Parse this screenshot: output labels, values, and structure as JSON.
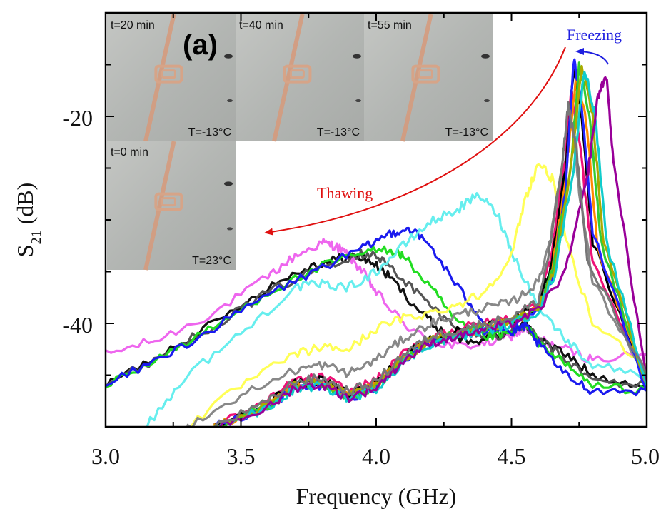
{
  "chart_data": {
    "type": "line",
    "panel_label": "(a)",
    "xlabel": "Frequency (GHz)",
    "ylabel_main": "S",
    "ylabel_sub": "21",
    "ylabel_unit": " (dB)",
    "xlim": [
      3.0,
      5.0
    ],
    "ylim": [
      -50,
      -10
    ],
    "x_ticks": [
      "3.0",
      "3.5",
      "4.0",
      "4.5",
      "5.0"
    ],
    "y_ticks": [
      "-20",
      "-40"
    ],
    "grid": false,
    "annotations": {
      "freezing": "Freezing",
      "thawing": "Thawing",
      "freezing_color": "#1f1fe0",
      "thawing_color": "#e01010"
    },
    "inset_photos": [
      {
        "time": "t=20 min",
        "temp": "T=-13°C"
      },
      {
        "time": "t=40 min",
        "temp": "T=-13°C"
      },
      {
        "time": "t=55 min",
        "temp": "T=-13°C"
      },
      {
        "time": "t=0 min",
        "temp": "T=23°C"
      }
    ],
    "series": [
      {
        "color": "#ee66ee",
        "x": [
          3.0,
          3.2,
          3.4,
          3.6,
          3.7,
          3.8,
          3.85,
          3.9,
          3.95,
          4.0,
          4.1,
          4.2,
          4.3,
          4.4,
          4.5,
          4.55,
          4.6,
          4.7,
          4.8,
          5.0
        ],
        "y": [
          -43,
          -41.5,
          -39,
          -35.5,
          -33.5,
          -32.2,
          -32.5,
          -33.5,
          -35,
          -37,
          -40,
          -41.8,
          -42.2,
          -42,
          -41.2,
          -40.5,
          -41.5,
          -42.5,
          -43.5,
          -43
        ]
      },
      {
        "color": "#111111",
        "x": [
          3.0,
          3.2,
          3.4,
          3.6,
          3.75,
          3.85,
          3.92,
          3.98,
          4.05,
          4.15,
          4.25,
          4.35,
          4.45,
          4.55,
          4.6,
          4.7,
          4.8,
          5.0
        ],
        "y": [
          -46,
          -43,
          -40,
          -36.5,
          -34.5,
          -33.8,
          -33.5,
          -34,
          -35.5,
          -38.5,
          -41,
          -41.8,
          -41.2,
          -40,
          -41.5,
          -43,
          -45,
          -46
        ]
      },
      {
        "color": "#555555",
        "x": [
          3.0,
          3.2,
          3.4,
          3.6,
          3.8,
          3.92,
          3.98,
          4.05,
          4.15,
          4.25,
          4.35,
          4.45,
          4.55,
          4.6,
          4.7,
          4.8,
          5.0
        ],
        "y": [
          -46,
          -43.2,
          -40.2,
          -37,
          -34.5,
          -33.4,
          -33.2,
          -34.5,
          -37,
          -39.5,
          -41,
          -41.2,
          -40.2,
          -41.5,
          -43.5,
          -45.5,
          -46
        ]
      },
      {
        "color": "#22dd22",
        "x": [
          3.0,
          3.2,
          3.4,
          3.6,
          3.8,
          3.95,
          4.05,
          4.1,
          4.2,
          4.3,
          4.4,
          4.5,
          4.55,
          4.6,
          4.7,
          4.8,
          5.0
        ],
        "y": [
          -46,
          -43.3,
          -40.4,
          -37,
          -34.5,
          -33.2,
          -32.8,
          -33.5,
          -36.5,
          -40,
          -41.3,
          -41,
          -40.2,
          -41.8,
          -44,
          -46,
          -46.5
        ]
      },
      {
        "color": "#1a1aee",
        "x": [
          3.0,
          3.2,
          3.4,
          3.6,
          3.8,
          3.95,
          4.05,
          4.12,
          4.2,
          4.3,
          4.4,
          4.5,
          4.55,
          4.6,
          4.7,
          4.8,
          5.0
        ],
        "y": [
          -46,
          -43.4,
          -40.5,
          -37.2,
          -34.6,
          -32.8,
          -31.3,
          -30.8,
          -32.5,
          -36.5,
          -39.8,
          -41,
          -40.2,
          -42,
          -45,
          -46.5,
          -46.5
        ]
      },
      {
        "color": "#66eeee",
        "x": [
          3.15,
          3.3,
          3.5,
          3.7,
          3.8,
          3.9,
          4.0,
          4.1,
          4.2,
          4.3,
          4.38,
          4.45,
          4.5,
          4.6,
          4.7,
          4.8,
          5.0
        ],
        "y": [
          -50,
          -45,
          -41,
          -36.5,
          -36.2,
          -36.5,
          -35,
          -32.5,
          -30.2,
          -29,
          -27.6,
          -29.5,
          -33,
          -38.5,
          -41.5,
          -44,
          -45
        ]
      },
      {
        "color": "#ffff55",
        "x": [
          3.3,
          3.5,
          3.7,
          3.8,
          3.9,
          4.0,
          4.1,
          4.2,
          4.3,
          4.4,
          4.5,
          4.55,
          4.6,
          4.65,
          4.7,
          4.8,
          5.0
        ],
        "y": [
          -50,
          -46,
          -43,
          -42.3,
          -42.5,
          -40.5,
          -39.5,
          -39,
          -38.2,
          -37,
          -33.5,
          -28,
          -24.5,
          -26,
          -32,
          -40,
          -44
        ]
      },
      {
        "color": "#888888",
        "x": [
          3.3,
          3.5,
          3.7,
          3.8,
          3.9,
          4.0,
          4.1,
          4.2,
          4.3,
          4.4,
          4.5,
          4.6,
          4.65,
          4.7,
          4.72,
          4.75,
          4.8,
          5.0
        ],
        "y": [
          -50,
          -47,
          -44.5,
          -44,
          -44.8,
          -43.5,
          -41.5,
          -40,
          -39.2,
          -38.5,
          -38,
          -36,
          -31,
          -24,
          -20,
          -27,
          -36,
          -45
        ]
      },
      {
        "color": "#ee1177",
        "x": [
          3.4,
          3.6,
          3.7,
          3.8,
          3.9,
          4.0,
          4.1,
          4.2,
          4.3,
          4.4,
          4.5,
          4.6,
          4.65,
          4.7,
          4.72,
          4.75,
          4.8,
          5.0
        ],
        "y": [
          -50,
          -47.5,
          -45.5,
          -45.2,
          -46.5,
          -45.5,
          -43,
          -41.3,
          -40.5,
          -40,
          -39.5,
          -38,
          -33,
          -24,
          -17.5,
          -22,
          -34,
          -45.5
        ]
      },
      {
        "color": "#000000",
        "x": [
          3.4,
          3.6,
          3.7,
          3.8,
          3.9,
          4.0,
          4.1,
          4.2,
          4.3,
          4.4,
          4.5,
          4.6,
          4.65,
          4.7,
          4.73,
          4.76,
          4.8,
          5.0
        ],
        "y": [
          -50,
          -47.8,
          -45.8,
          -45.5,
          -46.8,
          -45.8,
          -43.2,
          -41.5,
          -40.8,
          -40.2,
          -39.7,
          -38.3,
          -34,
          -25,
          -15.5,
          -20,
          -32,
          -46
        ]
      },
      {
        "color": "#ff8800",
        "x": [
          3.4,
          3.6,
          3.7,
          3.8,
          3.9,
          4.0,
          4.1,
          4.2,
          4.3,
          4.4,
          4.5,
          4.6,
          4.65,
          4.7,
          4.74,
          4.78,
          4.82,
          5.0
        ],
        "y": [
          -50,
          -48,
          -46,
          -45.7,
          -47,
          -46,
          -43.4,
          -41.7,
          -41,
          -40.4,
          -39.8,
          -38.5,
          -35,
          -26,
          -16,
          -21,
          -33,
          -46
        ]
      },
      {
        "color": "#2222ff",
        "x": [
          3.4,
          3.6,
          3.7,
          3.8,
          3.9,
          4.0,
          4.1,
          4.2,
          4.3,
          4.4,
          4.5,
          4.6,
          4.65,
          4.7,
          4.73,
          4.76,
          4.8,
          5.0
        ],
        "y": [
          -50,
          -48.2,
          -46.2,
          -46,
          -47.2,
          -46.2,
          -43.6,
          -41.9,
          -41.2,
          -40.6,
          -40,
          -38.7,
          -35.5,
          -27,
          -14.5,
          -19,
          -31,
          -46.5
        ]
      },
      {
        "color": "#33cc33",
        "x": [
          3.4,
          3.6,
          3.7,
          3.8,
          3.9,
          4.0,
          4.1,
          4.2,
          4.3,
          4.4,
          4.5,
          4.6,
          4.65,
          4.72,
          4.75,
          4.79,
          4.83,
          5.0
        ],
        "y": [
          -50,
          -48.1,
          -46.1,
          -45.8,
          -47.1,
          -46.1,
          -43.5,
          -41.8,
          -41.1,
          -40.5,
          -39.9,
          -38.6,
          -35,
          -25,
          -15,
          -20,
          -32,
          -46
        ]
      },
      {
        "color": "#aaaa00",
        "x": [
          3.4,
          3.6,
          3.7,
          3.8,
          3.9,
          4.0,
          4.1,
          4.2,
          4.3,
          4.4,
          4.5,
          4.6,
          4.66,
          4.72,
          4.76,
          4.8,
          4.84,
          5.0
        ],
        "y": [
          -50,
          -48,
          -46,
          -45.7,
          -47,
          -46,
          -43.4,
          -41.7,
          -41,
          -40.4,
          -39.8,
          -38.5,
          -35,
          -25,
          -15.2,
          -20,
          -32,
          -46
        ]
      },
      {
        "color": "#11cccc",
        "x": [
          3.4,
          3.6,
          3.7,
          3.8,
          3.9,
          4.0,
          4.1,
          4.2,
          4.3,
          4.4,
          4.5,
          4.6,
          4.66,
          4.73,
          4.77,
          4.81,
          4.85,
          5.0
        ],
        "y": [
          -50,
          -48.3,
          -46.3,
          -46,
          -47.3,
          -46.3,
          -43.7,
          -42,
          -41.3,
          -40.7,
          -40.1,
          -38.8,
          -35.2,
          -25,
          -15.3,
          -20,
          -32,
          -46
        ]
      },
      {
        "color": "#990099",
        "x": [
          3.4,
          3.6,
          3.7,
          3.8,
          3.9,
          4.0,
          4.1,
          4.2,
          4.3,
          4.4,
          4.5,
          4.6,
          4.7,
          4.78,
          4.82,
          4.85,
          4.88,
          5.0
        ],
        "y": [
          -50,
          -48.2,
          -46.2,
          -45.9,
          -47.2,
          -46.2,
          -43.6,
          -41.9,
          -41.2,
          -40.6,
          -40,
          -38.7,
          -35,
          -26,
          -18,
          -16,
          -25,
          -45.5
        ]
      },
      {
        "color": "#777777",
        "x": [
          3.4,
          3.6,
          3.7,
          3.8,
          3.9,
          4.0,
          4.1,
          4.2,
          4.3,
          4.4,
          4.5,
          4.6,
          4.64,
          4.69,
          4.71,
          4.74,
          4.78,
          5.0
        ],
        "y": [
          -50,
          -47.6,
          -45.6,
          -45.3,
          -46.6,
          -45.6,
          -43,
          -41.3,
          -40.6,
          -40,
          -39.4,
          -37.8,
          -33,
          -24,
          -19,
          -23,
          -34,
          -45
        ]
      }
    ]
  }
}
